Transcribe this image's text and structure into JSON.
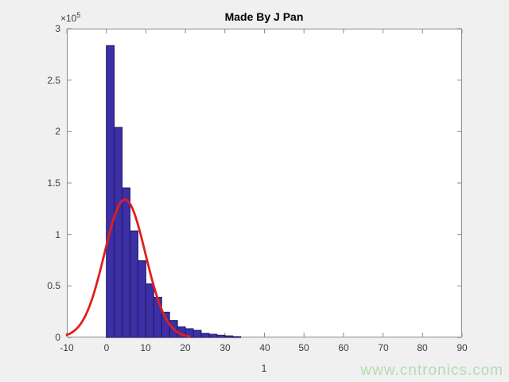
{
  "figure": {
    "title": "Made By J Pan",
    "xlabel": "1",
    "y_exponent_base": "×10",
    "y_exponent": "5",
    "watermark": "www.cntronics.com",
    "colors": {
      "figure_background": "#f0f0f0",
      "plot_background": "#ffffff",
      "axis_box": "#8a8a8a",
      "tick_labels": "#3d3d3d",
      "title": "#000000",
      "watermark": "#b5dcb2"
    }
  },
  "chart_data": {
    "type": "bar",
    "subtype": "histogram-with-gaussian-fit",
    "title": "Made By J Pan",
    "xlabel": "1",
    "ylabel": "",
    "xlim": [
      -10,
      90
    ],
    "ylim": [
      0,
      300000
    ],
    "y_scale_exponent": 5,
    "grid": false,
    "x_ticks": [
      -10,
      0,
      10,
      20,
      30,
      40,
      50,
      60,
      70,
      80,
      90
    ],
    "y_ticks": {
      "values": [
        0,
        50000,
        100000,
        150000,
        200000,
        250000,
        300000
      ],
      "labels": [
        "0",
        "0.5",
        "1",
        "1.5",
        "2",
        "2.5",
        "3"
      ]
    },
    "histogram": {
      "bin_start": 0,
      "bin_width": 2,
      "counts": [
        283500,
        204000,
        145300,
        103500,
        74500,
        52000,
        39000,
        24500,
        16500,
        10200,
        8500,
        6900,
        4000,
        3100,
        2100,
        1500,
        800
      ],
      "bar_color": "#3d2fa6",
      "bar_edge_color": "#1e1960"
    },
    "fit_curve": {
      "shape": "gaussian",
      "amplitude": 134000,
      "mean": 4.7,
      "sigma": 5.2,
      "x_start": -10,
      "x_end": 21,
      "color": "#e01f1f",
      "line_width": 2.8
    }
  }
}
